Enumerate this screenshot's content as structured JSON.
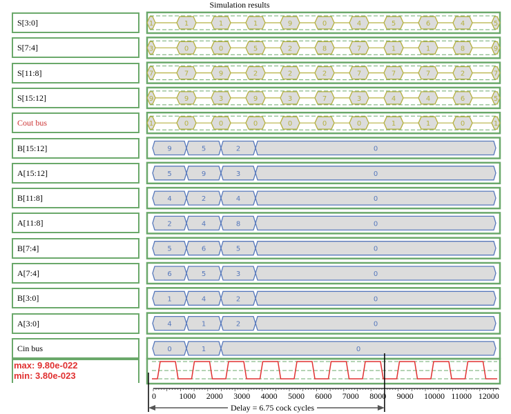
{
  "title": "Simulation results",
  "signals": [
    {
      "label": "S[3:0]",
      "kind": "hex",
      "values": [
        "1",
        "1",
        "1",
        "1",
        "9",
        "0",
        "4",
        "5",
        "6",
        "4",
        "5"
      ]
    },
    {
      "label": "S[7:4]",
      "kind": "hex",
      "values": [
        "3",
        "0",
        "0",
        "5",
        "2",
        "8",
        "7",
        "1",
        "1",
        "8",
        "9"
      ]
    },
    {
      "label": "S[11:8]",
      "kind": "hex",
      "values": [
        "7",
        "7",
        "9",
        "2",
        "2",
        "2",
        "7",
        "7",
        "7",
        "2",
        "7"
      ]
    },
    {
      "label": "S[15:12]",
      "kind": "hex",
      "values": [
        "9",
        "9",
        "3",
        "9",
        "3",
        "7",
        "3",
        "4",
        "4",
        "6",
        "5"
      ]
    },
    {
      "label": "Cout bus",
      "kind": "hex",
      "values": [
        "1",
        "0",
        "0",
        "0",
        "0",
        "0",
        "0",
        "1",
        "1",
        "0",
        "1"
      ]
    },
    {
      "label": "B[15:12]",
      "kind": "bus",
      "values": [
        "9",
        "5",
        "2",
        "0"
      ]
    },
    {
      "label": "A[15:12]",
      "kind": "bus",
      "values": [
        "5",
        "9",
        "3",
        "0"
      ]
    },
    {
      "label": "B[11:8]",
      "kind": "bus",
      "values": [
        "4",
        "2",
        "4",
        "0"
      ]
    },
    {
      "label": "A[11:8]",
      "kind": "bus",
      "values": [
        "2",
        "4",
        "8",
        "0"
      ]
    },
    {
      "label": "B[7:4]",
      "kind": "bus",
      "values": [
        "5",
        "6",
        "5",
        "0"
      ]
    },
    {
      "label": "A[7:4]",
      "kind": "bus",
      "values": [
        "6",
        "5",
        "3",
        "0"
      ]
    },
    {
      "label": "B[3:0]",
      "kind": "bus",
      "values": [
        "1",
        "4",
        "2",
        "0"
      ]
    },
    {
      "label": "A[3:0]",
      "kind": "bus",
      "values": [
        "4",
        "1",
        "2",
        "0"
      ]
    },
    {
      "label": "Cin bus",
      "kind": "bus",
      "values": [
        "0",
        "1",
        "0"
      ]
    }
  ],
  "clock": {
    "max_label": "max: 9.80e-022",
    "min_label": "min: 3.80e-023"
  },
  "axis": {
    "ticks": [
      "0",
      "1000",
      "2000",
      "3000",
      "4000",
      "5000",
      "6000",
      "7000",
      "8000",
      "9000",
      "10000",
      "11000",
      "12000"
    ]
  },
  "marker_time": 8500,
  "delay_label": "Delay = 6.75 cock cycles",
  "colors": {
    "frame": "#6aa86a",
    "hex_wave": "#b5b040",
    "bus_wave": "#5577bb",
    "bus_fill": "#dcdcdc",
    "clock": "#e03030"
  }
}
